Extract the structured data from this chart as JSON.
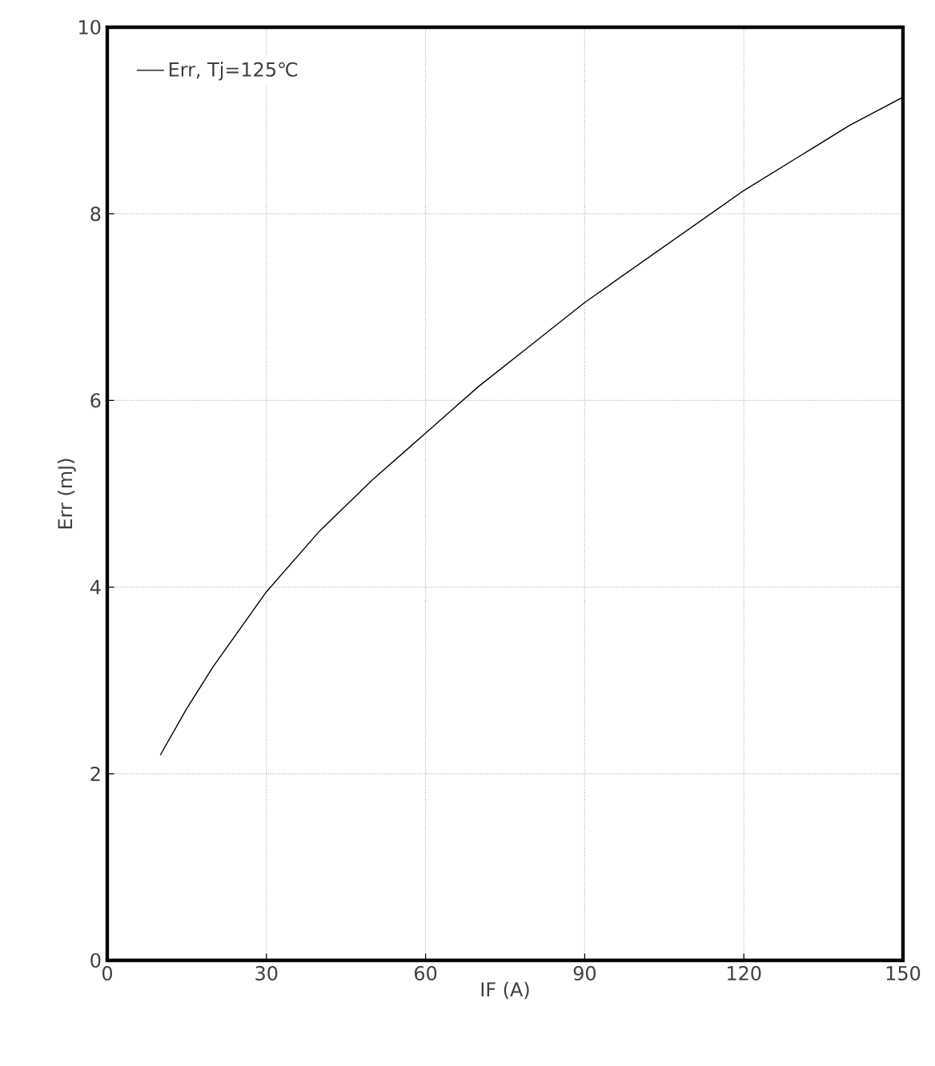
{
  "chart_data": {
    "type": "line",
    "xlabel": "IF (A)",
    "ylabel": "Err (mJ)",
    "xlim": [
      0,
      150
    ],
    "ylim": [
      0,
      10
    ],
    "xticks": [
      0,
      30,
      60,
      90,
      120,
      150
    ],
    "yticks": [
      0,
      2,
      4,
      6,
      8,
      10
    ],
    "grid": true,
    "legend": "top left",
    "marker": "none",
    "line_style": "solid",
    "series": [
      {
        "name": "Err, Tj=125℃",
        "color": "#000000",
        "x": [
          10,
          15,
          20,
          30,
          40,
          50,
          60,
          70,
          80,
          90,
          100,
          110,
          120,
          130,
          140,
          150
        ],
        "values": [
          2.2,
          2.7,
          3.15,
          3.95,
          4.6,
          5.15,
          5.65,
          6.15,
          6.6,
          7.05,
          7.45,
          7.85,
          8.25,
          8.6,
          8.95,
          9.25
        ]
      }
    ]
  }
}
